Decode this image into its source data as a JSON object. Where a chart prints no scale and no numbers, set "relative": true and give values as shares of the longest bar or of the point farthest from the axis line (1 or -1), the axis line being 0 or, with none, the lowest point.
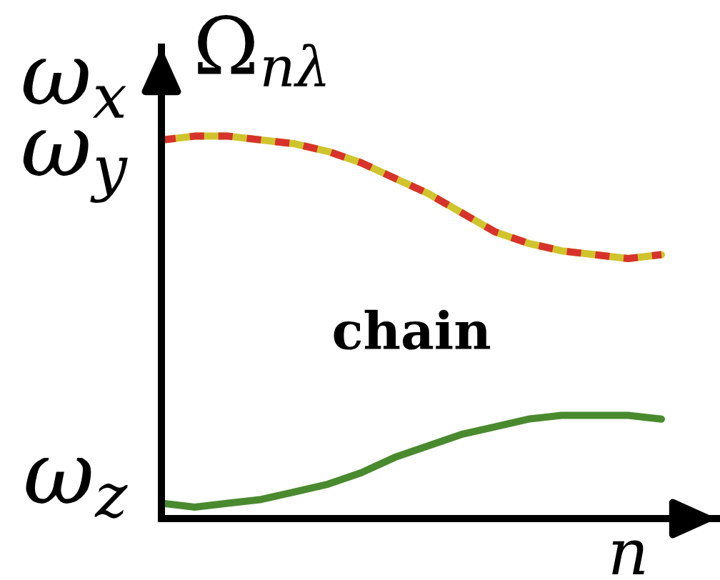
{
  "chart_data": {
    "type": "line",
    "relative": true,
    "xlabel": "n",
    "ylabel": "Ω$_{nλ}$",
    "annotations": [
      "chain"
    ],
    "categories": [
      null,
      null,
      null,
      null,
      null,
      null,
      null,
      null,
      null,
      null,
      null,
      null,
      null,
      null,
      null,
      null
    ],
    "series": [
      {
        "name": "ω$_{x}$",
        "color": "#cfc42c",
        "values": [
          0.99,
          1.0,
          1.0,
          0.99,
          0.98,
          0.96,
          0.93,
          0.89,
          0.85,
          0.8,
          0.75,
          0.72,
          0.7,
          0.69,
          0.68,
          0.69
        ]
      },
      {
        "name": "ω$_{y}$",
        "color": "#d8322c",
        "line_style": "dashed",
        "values": [
          0.99,
          1.0,
          1.0,
          0.99,
          0.98,
          0.96,
          0.93,
          0.89,
          0.85,
          0.8,
          0.75,
          0.72,
          0.7,
          0.69,
          0.68,
          0.69
        ]
      },
      {
        "name": "ω$_{z}$",
        "color": "#4a8a2f",
        "values": [
          0.04,
          0.03,
          0.04,
          0.05,
          0.07,
          0.09,
          0.12,
          0.16,
          0.19,
          0.22,
          0.24,
          0.26,
          0.27,
          0.27,
          0.27,
          0.26
        ]
      }
    ]
  }
}
